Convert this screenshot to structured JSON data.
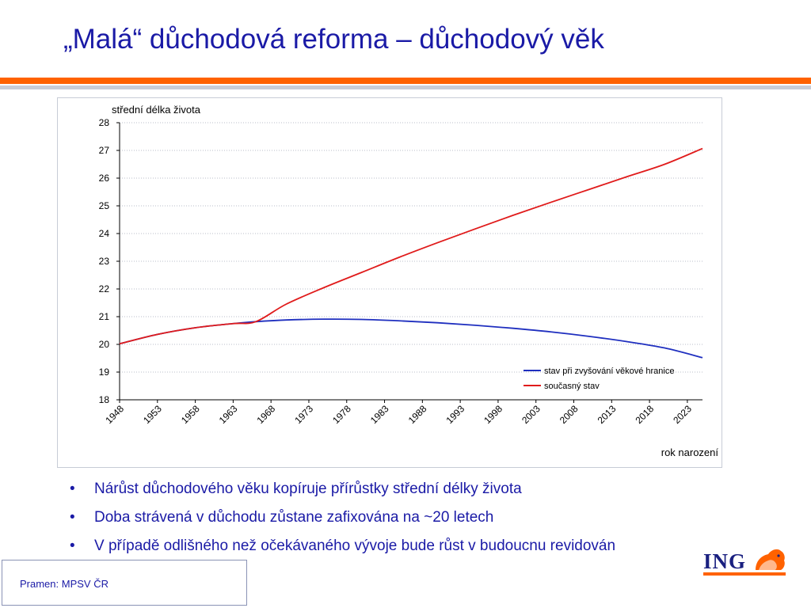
{
  "slide": {
    "title": "„Malá“ důchodová reforma – důchodový věk"
  },
  "bullets": [
    "Nárůst důchodového věku kopíruje přírůstky střední délky života",
    "Doba strávená v důchodu zůstane zafixována na ~20 letech",
    "V případě odlišného než očekávaného vývoje bude růst v budoucnu revidován"
  ],
  "bullet_symbol": "•",
  "source": "Pramen: MPSV ČR",
  "logo": {
    "text": "ING",
    "icon": "lion-icon"
  },
  "colors": {
    "title": "#1a1aa6",
    "accent_orange": "#ff6200",
    "accent_grey": "#c9cdd6",
    "series_blue": "#1f2fbf",
    "series_red": "#e01b1b"
  },
  "chart_data": {
    "type": "line",
    "ylabel": "střední délka života",
    "xlabel": "rok narození",
    "ylim": [
      18,
      28
    ],
    "xlim": [
      1948,
      2025
    ],
    "yticks": [
      18,
      19,
      20,
      21,
      22,
      23,
      24,
      25,
      26,
      27,
      28
    ],
    "xticks": [
      1948,
      1953,
      1958,
      1963,
      1968,
      1973,
      1978,
      1983,
      1988,
      1993,
      1998,
      2003,
      2008,
      2013,
      2018,
      2023
    ],
    "grid": "horizontal dotted",
    "legend_position": "bottom-right",
    "series": [
      {
        "name": "stav při zvyšování věkové hranice",
        "color": "#1f2fbf",
        "x": [
          1948,
          1953,
          1958,
          1963,
          1966,
          1970,
          1975,
          1980,
          1985,
          1990,
          1995,
          2000,
          2005,
          2010,
          2015,
          2020,
          2025
        ],
        "y": [
          20.02,
          20.36,
          20.6,
          20.75,
          20.82,
          20.88,
          20.91,
          20.9,
          20.85,
          20.78,
          20.69,
          20.58,
          20.45,
          20.29,
          20.1,
          19.87,
          19.52
        ]
      },
      {
        "name": "současný stav",
        "color": "#e01b1b",
        "x": [
          1948,
          1953,
          1958,
          1963,
          1966,
          1970,
          1975,
          1980,
          1985,
          1990,
          1995,
          2000,
          2005,
          2010,
          2015,
          2020,
          2025
        ],
        "y": [
          20.02,
          20.36,
          20.6,
          20.75,
          20.82,
          21.45,
          22.05,
          22.6,
          23.15,
          23.67,
          24.17,
          24.66,
          25.13,
          25.59,
          26.05,
          26.5,
          27.07
        ]
      }
    ]
  }
}
